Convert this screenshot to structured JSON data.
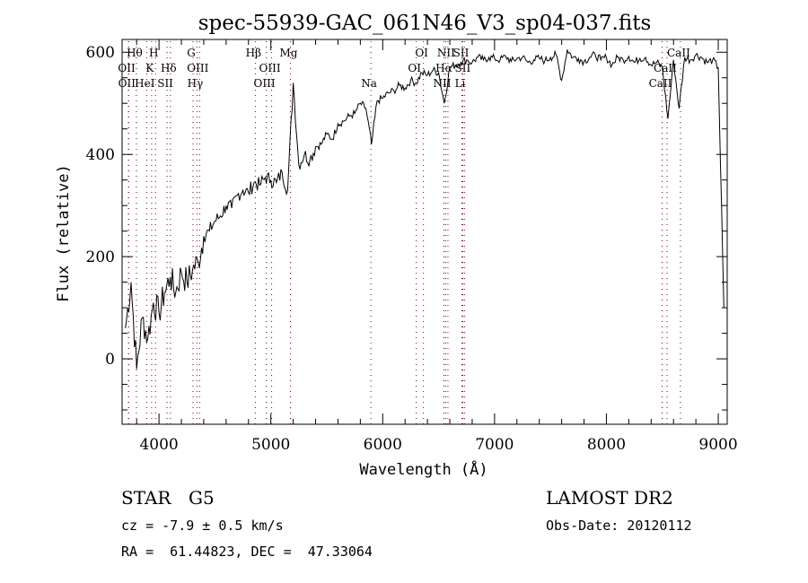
{
  "chart_data": {
    "type": "line",
    "title": "spec-55939-GAC_061N46_V3_sp04-037.fits",
    "xlabel": "Wavelength (Å)",
    "ylabel": "Flux (relative)",
    "xlim": [
      3670,
      9080
    ],
    "ylim": [
      -128,
      625
    ],
    "x_ticks": [
      4000,
      5000,
      6000,
      7000,
      8000,
      9000
    ],
    "y_ticks": [
      0,
      200,
      400,
      600
    ],
    "grid": false,
    "series": [
      {
        "name": "spectrum",
        "x_start": 3700,
        "x_step": 50,
        "values": [
          60,
          150,
          -20,
          80,
          40,
          110,
          90,
          130,
          160,
          130,
          170,
          150,
          175,
          190,
          240,
          250,
          270,
          280,
          300,
          295,
          320,
          330,
          325,
          345,
          340,
          355,
          350,
          345,
          365,
          330,
          540,
          380,
          400,
          390,
          415,
          420,
          440,
          430,
          460,
          465,
          475,
          480,
          500,
          490,
          420,
          505,
          510,
          520,
          525,
          535,
          530,
          545,
          540,
          560,
          555,
          565,
          560,
          500,
          570,
          575,
          580,
          585,
          580,
          590,
          585,
          590,
          588,
          585,
          592,
          582,
          588,
          590,
          580,
          585,
          588,
          583,
          590,
          595,
          545,
          605,
          590,
          588,
          582,
          590,
          595,
          585,
          590,
          575,
          590,
          585,
          592,
          580,
          588,
          590,
          575,
          580,
          570,
          470,
          585,
          490,
          590,
          585,
          595,
          590,
          580,
          585,
          570,
          100
        ]
      }
    ],
    "lines": [
      {
        "label": "OII",
        "wave": 3727,
        "row": 2
      },
      {
        "label": "OII",
        "wave": 3729,
        "row": 3
      },
      {
        "label": "Hθ",
        "wave": 3798,
        "row": 1
      },
      {
        "label": "HeI",
        "wave": 3889,
        "row": 3
      },
      {
        "label": "K",
        "wave": 3934,
        "row": 2
      },
      {
        "label": "H",
        "wave": 3969,
        "row": 1
      },
      {
        "label": "SII",
        "wave": 4072,
        "row": 3
      },
      {
        "label": "Hδ",
        "wave": 4102,
        "row": 2
      },
      {
        "label": "G",
        "wave": 4304,
        "row": 1
      },
      {
        "label": "OIII",
        "wave": 4363,
        "row": 2
      },
      {
        "label": "Hγ",
        "wave": 4340,
        "row": 3
      },
      {
        "label": "Hβ",
        "wave": 4861,
        "row": 1
      },
      {
        "label": "OIII",
        "wave": 4959,
        "row": 3
      },
      {
        "label": "OIII",
        "wave": 5007,
        "row": 2
      },
      {
        "label": "Mg",
        "wave": 5175,
        "row": 1
      },
      {
        "label": "Na",
        "wave": 5894,
        "row": 3
      },
      {
        "label": "OI",
        "wave": 6300,
        "row": 2
      },
      {
        "label": "OI",
        "wave": 6364,
        "row": 1
      },
      {
        "label": "NII",
        "wave": 6548,
        "row": 3
      },
      {
        "label": "Hα",
        "wave": 6563,
        "row": 2
      },
      {
        "label": "NII",
        "wave": 6583,
        "row": 1
      },
      {
        "label": "Li",
        "wave": 6708,
        "row": 3
      },
      {
        "label": "SII",
        "wave": 6716,
        "row": 1
      },
      {
        "label": "SII",
        "wave": 6731,
        "row": 2
      },
      {
        "label": "CaII",
        "wave": 8498,
        "row": 3
      },
      {
        "label": "CaII",
        "wave": 8542,
        "row": 2
      },
      {
        "label": "CaII",
        "wave": 8662,
        "row": 1
      }
    ]
  },
  "info": {
    "object_class": "STAR",
    "subclass": "G5",
    "survey": "LAMOST DR2",
    "cz": "cz = -7.9 ± 0.5 km/s",
    "obs_date": "Obs-Date: 20120112",
    "radec": "RA =  61.44823, DEC =  47.33064"
  },
  "colors": {
    "line_marker": "#8b0000",
    "spectrum": "#000000"
  }
}
